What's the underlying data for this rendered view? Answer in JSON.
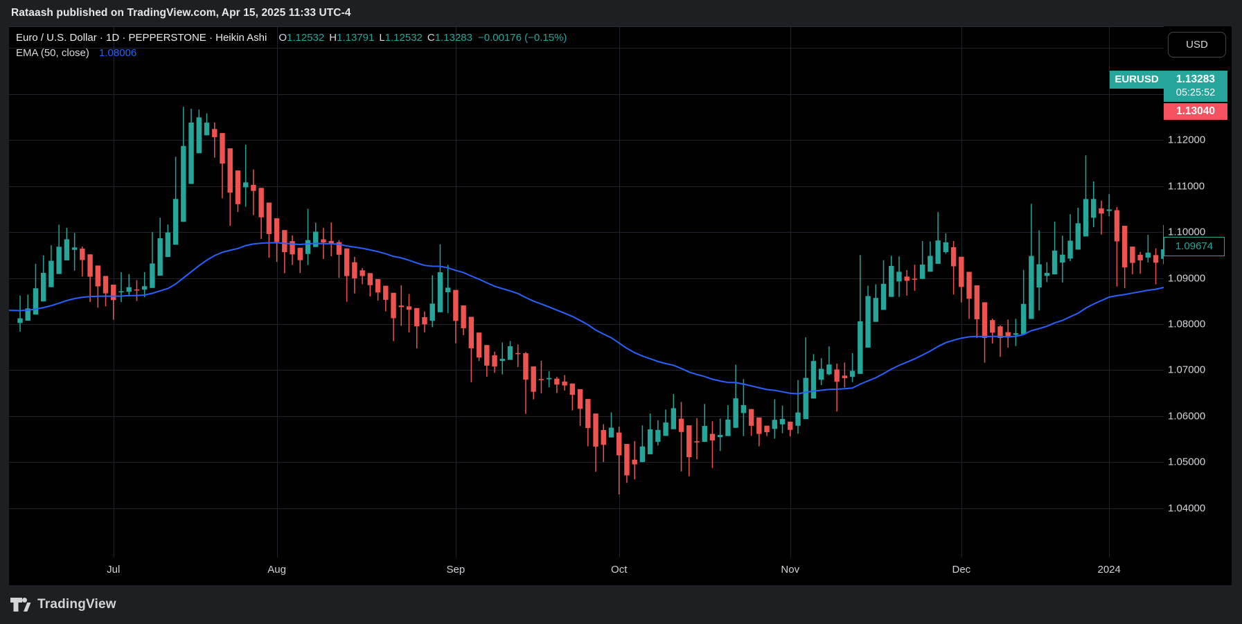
{
  "attribution": {
    "text": "Rataash published on TradingView.com, Apr 15, 2025 11:33 UTC-4"
  },
  "legend": {
    "title": "Euro / U.S. Dollar · 1D · PEPPERSTONE · Heikin Ashi",
    "ohlc": {
      "o_label": "O",
      "o": "1.12532",
      "h_label": "H",
      "h": "1.13791",
      "l_label": "L",
      "l": "1.12532",
      "c_label": "C",
      "c": "1.13283",
      "change": "−0.00176 (−0.15%)"
    },
    "indicator": {
      "name": "EMA (50, close)",
      "value": "1.08006"
    }
  },
  "price_axis": {
    "currency_button": "USD",
    "symbol_badge": "EURUSD",
    "last_price": "1.13283",
    "countdown": "05:25:52",
    "counter_price": "1.13040",
    "marker_price": "1.09674",
    "ticks": [
      "1.12000",
      "1.11000",
      "1.10000",
      "1.09000",
      "1.08000",
      "1.07000",
      "1.06000",
      "1.05000",
      "1.04000"
    ]
  },
  "footer": {
    "brand": "TradingView"
  },
  "colors": {
    "up": "#26a69a",
    "down": "#ef5350",
    "badge_down": "#f7525f",
    "ema": "#2962ff",
    "grid": "#20242d",
    "axis_border": "#343842",
    "chart_bg": "#000000",
    "frame_bg": "#1e1f23"
  },
  "chart_data": {
    "type": "candlestick",
    "style": "Heikin Ashi",
    "symbol": "EURUSD",
    "interval": "1D",
    "exchange": "PEPPERSTONE",
    "title": "Euro / U.S. Dollar",
    "n_bars": 149,
    "closes": [
      1.0815,
      1.085,
      1.089,
      1.092,
      1.0945,
      1.0975,
      1.0992,
      1.096,
      1.0925,
      1.09,
      1.088,
      1.0865,
      1.0855,
      1.087,
      1.0882,
      1.087,
      1.0888,
      1.096,
      1.1005,
      1.1,
      1.1128,
      1.1226,
      1.124,
      1.1252,
      1.123,
      1.1195,
      1.113,
      1.1065,
      1.1062,
      1.1125,
      1.106,
      1.1018,
      1.0996,
      1.0983,
      1.094,
      1.0945,
      1.0942,
      1.1009,
      1.1,
      1.0958,
      1.0975,
      1.0945,
      1.0875,
      1.091,
      1.09,
      1.0873,
      1.087,
      1.084,
      1.0805,
      1.0862,
      1.0816,
      1.079,
      1.0798,
      1.0881,
      1.0921,
      1.0843,
      1.0779,
      1.0795,
      1.0722,
      1.0727,
      1.0697,
      1.07,
      1.0748,
      1.0753,
      1.073,
      1.0643,
      1.0658,
      1.0692,
      1.0679,
      1.066,
      1.0662,
      1.0645,
      1.0593,
      1.0572,
      1.0503,
      1.0565,
      1.0573,
      1.048,
      1.0468,
      1.0505,
      1.055,
      1.0586,
      1.0567,
      1.0603,
      1.0623,
      1.0529,
      1.051,
      1.056,
      1.0577,
      1.0536,
      1.0582,
      1.0594,
      1.0669,
      1.059,
      1.0568,
      1.0562,
      1.0565,
      1.0615,
      1.0575,
      1.057,
      1.0622,
      1.0731,
      1.0718,
      1.07,
      1.0708,
      1.0667,
      1.0684,
      1.0699,
      1.0879,
      1.0848,
      1.0853,
      1.0913,
      1.0939,
      1.091,
      1.0887,
      1.0903,
      1.0936,
      1.0953,
      1.0992,
      1.0969,
      1.0889,
      1.0884,
      1.0838,
      1.0795,
      1.0763,
      1.0793,
      1.0761,
      1.0764,
      1.0793,
      1.0874,
      1.0992,
      1.0895,
      1.0924,
      1.098,
      1.0941,
      1.1009,
      1.1013,
      1.1106,
      1.1061,
      1.1037,
      1.1043,
      1.094,
      1.0922,
      1.0946,
      1.0942,
      1.0951,
      1.0932,
      1.0973,
      1.09674
    ],
    "last_close": 1.09674,
    "ema": {
      "period": 50,
      "source": "close",
      "seed": 1.083,
      "current_value": 1.08006
    },
    "current_bar": {
      "open": 1.12532,
      "high": 1.13791,
      "low": 1.12532,
      "close": 1.13283,
      "change": -0.00176,
      "change_pct": -0.15
    },
    "y_axis": {
      "ylim": [
        1.0293,
        1.1447
      ],
      "grid_min": 1.04,
      "grid_max": 1.14,
      "grid_step": 0.01,
      "tick_prices": [
        1.12,
        1.11,
        1.1,
        1.09,
        1.08,
        1.07,
        1.06,
        1.05,
        1.04
      ]
    },
    "x_axis": {
      "labels": [
        {
          "text": "Jul",
          "bar": 12
        },
        {
          "text": "Aug",
          "bar": 33
        },
        {
          "text": "Sep",
          "bar": 56
        },
        {
          "text": "Oct",
          "bar": 77
        },
        {
          "text": "Nov",
          "bar": 99
        },
        {
          "text": "Dec",
          "bar": 121
        },
        {
          "text": "2024",
          "bar": 140
        }
      ]
    },
    "grid": true,
    "legend_position": "top-left"
  }
}
